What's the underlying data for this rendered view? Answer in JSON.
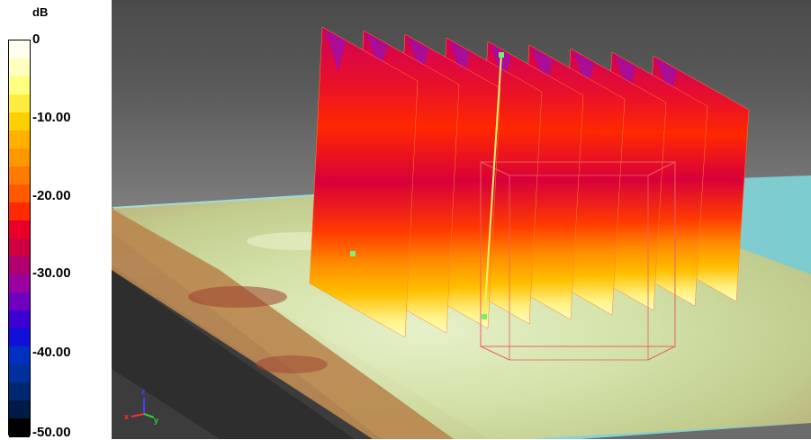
{
  "legend": {
    "unit": "dB",
    "ticks": [
      "0",
      "-10.00",
      "-20.00",
      "-30.00",
      "-40.00",
      "-50.00"
    ],
    "colors": [
      "#fffff0",
      "#ffffc0",
      "#ffff80",
      "#ffec40",
      "#ffd000",
      "#ffb000",
      "#ff9800",
      "#ff7a00",
      "#ff5a00",
      "#ff2a00",
      "#e80028",
      "#cc0040",
      "#b00070",
      "#9a00a0",
      "#7000c0",
      "#3c00d0",
      "#1010d8",
      "#0030c0",
      "#00309a",
      "#002870",
      "#001a48",
      "#000000"
    ]
  },
  "scene": {
    "sheet_count": 9,
    "axis_triad_labels": [
      "z",
      "x",
      "y"
    ]
  }
}
